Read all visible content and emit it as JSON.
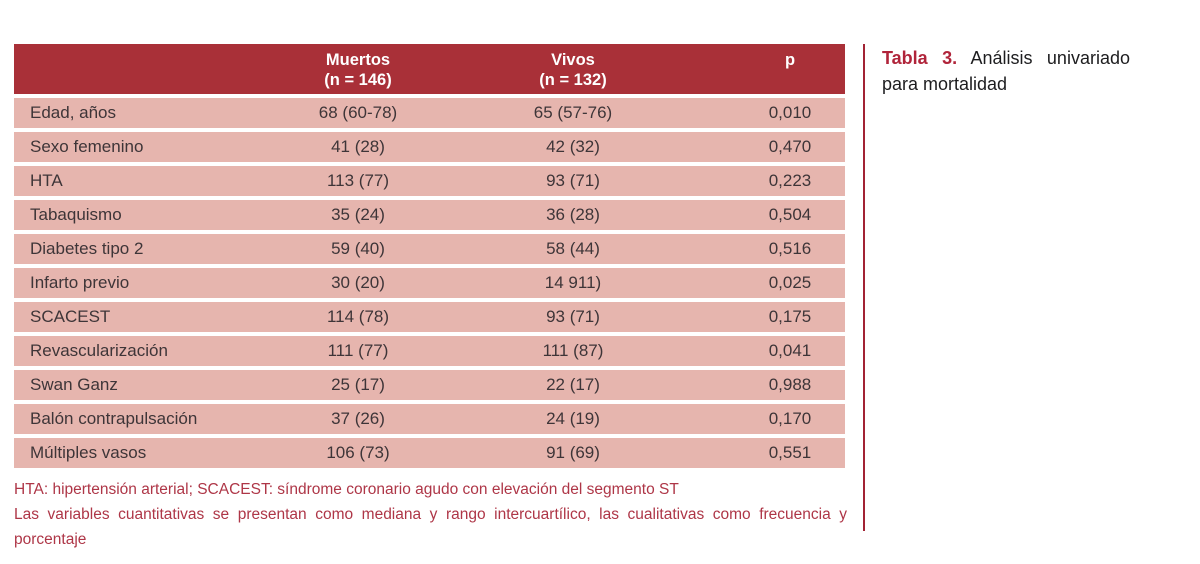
{
  "caption": {
    "label": "Tabla 3.",
    "text": "Análisis univariado para mortalidad"
  },
  "table": {
    "header": {
      "muertos": {
        "line1": "Muertos",
        "line2": "(n = 146)"
      },
      "vivos": {
        "line1": "Vivos",
        "line2": "(n = 132)"
      },
      "p": "p"
    },
    "rows": [
      {
        "label": "Edad, años",
        "muertos": "68 (60-78)",
        "vivos": "65 (57-76)",
        "p": "0,010"
      },
      {
        "label": "Sexo femenino",
        "muertos": "41 (28)",
        "vivos": "42 (32)",
        "p": "0,470"
      },
      {
        "label": "HTA",
        "muertos": "113 (77)",
        "vivos": "93 (71)",
        "p": "0,223"
      },
      {
        "label": "Tabaquismo",
        "muertos": "35 (24)",
        "vivos": "36 (28)",
        "p": "0,504"
      },
      {
        "label": "Diabetes tipo 2",
        "muertos": "59 (40)",
        "vivos": "58 (44)",
        "p": "0,516"
      },
      {
        "label": "Infarto previo",
        "muertos": "30 (20)",
        "vivos": "14 911)",
        "p": "0,025"
      },
      {
        "label": "SCACEST",
        "muertos": "114 (78)",
        "vivos": "93 (71)",
        "p": "0,175"
      },
      {
        "label": "Revascularización",
        "muertos": "111 (77)",
        "vivos": "111 (87)",
        "p": "0,041"
      },
      {
        "label": "Swan Ganz",
        "muertos": "25 (17)",
        "vivos": "22 (17)",
        "p": "0,988"
      },
      {
        "label": "Balón contrapulsación",
        "muertos": "37 (26)",
        "vivos": "24 (19)",
        "p": "0,170"
      },
      {
        "label": "Múltiples vasos",
        "muertos": "106 (73)",
        "vivos": "91 (69)",
        "p": "0,551"
      }
    ]
  },
  "footnotes": {
    "line1": "HTA: hipertensión arterial; SCACEST: síndrome coronario agudo con elevación del segmento ST",
    "line2": "Las variables cuantitativas se presentan como mediana y rango intercuartílico, las cualitativas como frecuencia y porcentaje"
  },
  "colors": {
    "header_bg": "#a93038",
    "row_bg": "#e6b5ae",
    "footnote_red": "#ae3647",
    "caption_label_red": "#b0243a",
    "divider_red": "#a22334",
    "cell_text": "#3e3538",
    "header_text": "#ffffff",
    "caption_text": "#1d1d1f"
  }
}
